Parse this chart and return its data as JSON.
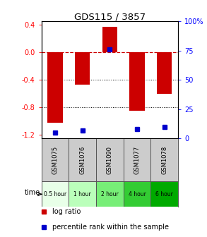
{
  "title": "GDS115 / 3857",
  "samples": [
    "GSM1075",
    "GSM1076",
    "GSM1090",
    "GSM1077",
    "GSM1078"
  ],
  "time_labels": [
    "0.5 hour",
    "1 hour",
    "2 hour",
    "4 hour",
    "6 hour"
  ],
  "time_bg_colors": [
    "#e8ffe8",
    "#bbffbb",
    "#77ee77",
    "#33cc33",
    "#00aa00"
  ],
  "log_ratios": [
    -1.02,
    -0.47,
    0.37,
    -0.85,
    -0.6
  ],
  "percentile_ranks": [
    5,
    7,
    76,
    8,
    10
  ],
  "bar_color": "#cc0000",
  "dot_color": "#0000cc",
  "ylim": [
    -1.25,
    0.45
  ],
  "yticks_left": [
    -1.2,
    -0.8,
    -0.4,
    0.0,
    0.4
  ],
  "yticks_right": [
    0,
    25,
    50,
    75,
    100
  ],
  "dotted_lines": [
    -0.4,
    -0.8
  ],
  "sample_bg": "#cccccc",
  "background_color": "#ffffff"
}
